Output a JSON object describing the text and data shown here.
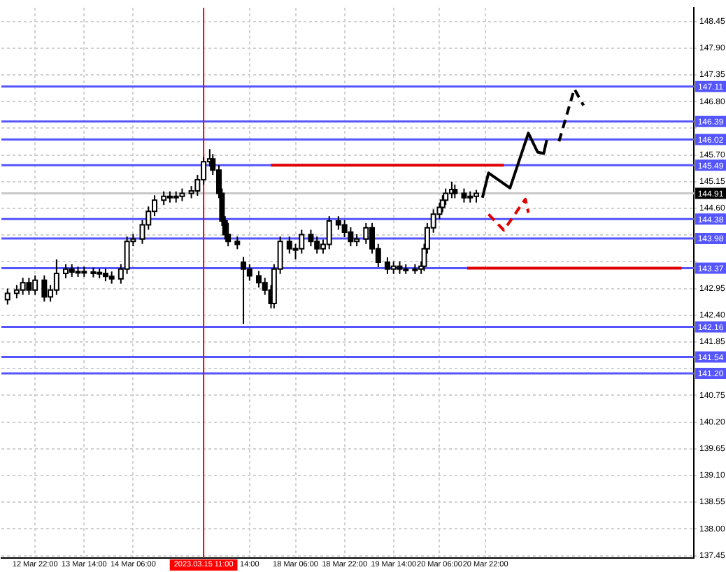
{
  "chart_data": {
    "type": "candlestick",
    "categories": [
      null,
      null,
      null,
      null,
      null,
      null,
      null,
      null,
      null,
      null,
      null,
      "12 Mar 22:00",
      null,
      null,
      null,
      null,
      null,
      null,
      null,
      null,
      null,
      null,
      null,
      null,
      null,
      null,
      null,
      "13 Mar 14:00",
      null,
      null,
      null,
      null,
      null,
      null,
      null,
      null,
      null,
      null,
      null,
      null,
      null,
      null,
      null,
      "14 Mar 06:00",
      null,
      null,
      null,
      null,
      null,
      null,
      null,
      null,
      null,
      null,
      null,
      null,
      null,
      null,
      null,
      null,
      null,
      null,
      null,
      null,
      null,
      null,
      "2023.03.15 11:00",
      null,
      null,
      null,
      null,
      null,
      null,
      null,
      null,
      null,
      null,
      null,
      null,
      null,
      null,
      "14:00",
      null,
      null,
      null,
      null,
      null,
      null,
      null,
      null,
      null,
      null,
      null,
      null,
      null,
      null,
      "18 Mar 06:00",
      null,
      null,
      null,
      null,
      null,
      null,
      null,
      null,
      null,
      null,
      null,
      null,
      null,
      null,
      null,
      "18 Mar 22:00",
      null,
      null,
      null,
      null,
      null,
      null,
      null,
      null,
      null,
      null,
      null,
      null,
      null,
      null,
      null,
      "19 Mar 14:00",
      null,
      null,
      null,
      null,
      null,
      null,
      null,
      null,
      null,
      null,
      null,
      null,
      null,
      null,
      "20 Mar 06:00",
      null,
      null,
      null,
      null,
      null,
      null,
      null,
      null,
      null,
      null,
      null,
      null,
      null,
      null,
      "20 Mar 22:00",
      null,
      null,
      null,
      null,
      null,
      null,
      null,
      null,
      null,
      null,
      null,
      null,
      null,
      null,
      null,
      null,
      null,
      null,
      null,
      null,
      null,
      null,
      null,
      null,
      null,
      null,
      null,
      null,
      null,
      null,
      null,
      null,
      null,
      null,
      null,
      null,
      null,
      null,
      null,
      null,
      null,
      null,
      null,
      null,
      null,
      null,
      null,
      null,
      null,
      null,
      null,
      null,
      null,
      null,
      null,
      null,
      null,
      null,
      null,
      null,
      null,
      null,
      null,
      null,
      null,
      null,
      null,
      null
    ],
    "ohlc": [
      null,
      null,
      [
        142.72,
        142.95,
        142.62,
        142.85
      ],
      null,
      null,
      [
        142.85,
        143.02,
        142.75,
        142.92
      ],
      null,
      [
        142.92,
        143.17,
        142.82,
        143.07
      ],
      null,
      [
        143.07,
        143.17,
        142.82,
        142.92
      ],
      null,
      [
        142.92,
        143.22,
        142.82,
        143.12
      ],
      null,
      null,
      [
        143.12,
        143.22,
        142.68,
        142.78
      ],
      null,
      [
        142.78,
        143.02,
        142.68,
        142.92
      ],
      null,
      [
        142.92,
        143.55,
        142.82,
        143.26
      ],
      null,
      null,
      [
        143.26,
        143.45,
        143.16,
        143.35
      ],
      null,
      [
        143.35,
        143.45,
        143.19,
        143.29
      ],
      null,
      [
        143.29,
        143.4,
        143.19,
        143.3
      ],
      null,
      [
        143.3,
        143.4,
        143.19,
        143.29
      ],
      null,
      null,
      [
        143.29,
        143.38,
        143.18,
        143.28
      ],
      null,
      [
        143.28,
        143.36,
        143.16,
        143.26
      ],
      null,
      [
        143.26,
        143.36,
        143.1,
        143.2
      ],
      null,
      [
        143.2,
        143.3,
        143.05,
        143.15
      ],
      null,
      null,
      [
        143.15,
        143.45,
        143.05,
        143.35
      ],
      null,
      [
        143.35,
        144.02,
        143.25,
        143.92
      ],
      null,
      [
        143.92,
        144.07,
        143.82,
        143.97
      ],
      null,
      null,
      [
        143.97,
        144.36,
        143.87,
        144.26
      ],
      null,
      [
        144.26,
        144.64,
        144.16,
        144.54
      ],
      null,
      [
        144.54,
        144.87,
        144.44,
        144.77
      ],
      null,
      null,
      [
        144.77,
        144.95,
        144.67,
        144.85
      ],
      null,
      [
        144.85,
        144.95,
        144.72,
        144.82
      ],
      null,
      [
        144.82,
        144.95,
        144.72,
        144.85
      ],
      null,
      [
        144.85,
        145.01,
        144.75,
        144.91
      ],
      null,
      null,
      [
        144.91,
        145.06,
        144.81,
        144.96
      ],
      null,
      [
        144.96,
        145.29,
        144.86,
        145.19
      ],
      null,
      [
        145.19,
        145.66,
        145.09,
        145.56
      ],
      null,
      [
        145.56,
        145.82,
        145.46,
        145.62
      ],
      [
        145.62,
        145.72,
        145.29,
        145.39
      ],
      null,
      [
        145.39,
        145.49,
        144.81,
        144.91
      ],
      [
        144.91,
        145.01,
        144.24,
        144.34
      ],
      [
        144.34,
        144.44,
        143.96,
        144.06
      ],
      [
        144.06,
        144.3,
        143.82,
        143.92
      ],
      null,
      null,
      [
        143.92,
        144.02,
        143.76,
        143.86
      ],
      null,
      [
        143.49,
        143.6,
        142.22,
        143.35
      ],
      null,
      [
        143.35,
        143.45,
        143.11,
        143.21
      ],
      null,
      null,
      [
        143.21,
        143.31,
        142.97,
        143.07
      ],
      null,
      [
        143.07,
        143.17,
        142.82,
        142.92
      ],
      null,
      [
        142.92,
        143.02,
        142.54,
        142.64
      ],
      [
        142.64,
        143.45,
        142.54,
        143.35
      ],
      null,
      [
        143.35,
        144.02,
        143.25,
        143.92
      ],
      null,
      null,
      [
        143.92,
        144.02,
        143.67,
        143.77
      ],
      null,
      [
        143.77,
        143.87,
        143.55,
        143.77
      ],
      null,
      [
        143.77,
        144.16,
        143.67,
        144.06
      ],
      null,
      null,
      [
        144.06,
        144.16,
        143.82,
        143.92
      ],
      null,
      [
        143.92,
        144.02,
        143.67,
        143.77
      ],
      null,
      [
        143.77,
        143.96,
        143.67,
        143.86
      ],
      null,
      [
        143.86,
        144.44,
        143.76,
        144.34
      ],
      null,
      null,
      [
        144.34,
        144.44,
        144.16,
        144.26
      ],
      null,
      [
        144.26,
        144.36,
        144.01,
        144.11
      ],
      null,
      [
        144.11,
        144.21,
        143.82,
        143.92
      ],
      null,
      [
        143.92,
        144.07,
        143.82,
        143.97
      ],
      null,
      null,
      [
        143.97,
        144.3,
        143.87,
        144.2
      ],
      null,
      [
        144.2,
        144.3,
        143.67,
        143.77
      ],
      null,
      [
        143.77,
        143.87,
        143.39,
        143.49
      ],
      null,
      null,
      [
        143.49,
        143.59,
        143.25,
        143.35
      ],
      null,
      [
        143.35,
        143.51,
        143.25,
        143.41
      ],
      null,
      [
        143.41,
        143.51,
        143.25,
        143.35
      ],
      null,
      [
        143.35,
        143.45,
        143.25,
        143.35
      ],
      null,
      null,
      [
        143.35,
        143.45,
        143.25,
        143.35
      ],
      null,
      [
        143.35,
        143.51,
        143.25,
        143.41
      ],
      [
        143.41,
        143.87,
        143.31,
        143.77
      ],
      [
        143.77,
        144.3,
        143.67,
        144.2
      ],
      null,
      [
        144.2,
        144.58,
        144.1,
        144.48
      ],
      null,
      [
        144.48,
        144.72,
        144.38,
        144.62
      ],
      [
        144.62,
        144.87,
        144.52,
        144.77
      ],
      [
        144.77,
        145.01,
        144.67,
        144.91
      ],
      null,
      [
        144.91,
        145.15,
        144.81,
        144.99
      ],
      [
        144.99,
        145.09,
        144.81,
        144.91
      ],
      null,
      null,
      [
        144.91,
        145.01,
        144.72,
        144.82
      ],
      null,
      [
        144.82,
        144.95,
        144.72,
        144.85
      ],
      null,
      [
        144.85,
        144.98,
        144.72,
        144.91
      ],
      null,
      null,
      null,
      null,
      null,
      null,
      null,
      null,
      null,
      null,
      null,
      null,
      null,
      null,
      null,
      null,
      null,
      null,
      null,
      null,
      null,
      null,
      null,
      null,
      null,
      null,
      null,
      null,
      null,
      null,
      null,
      null,
      null,
      null,
      null,
      null,
      null,
      null,
      null,
      null,
      null,
      null,
      null,
      null,
      null,
      null,
      null,
      null,
      null,
      null,
      null,
      null,
      null,
      null,
      null,
      null,
      null,
      null,
      null,
      null,
      null,
      null,
      null,
      null,
      null,
      null,
      null,
      null,
      null,
      null,
      null
    ],
    "series": [
      {
        "type": "line",
        "color": "#e00000",
        "line_style": "solid",
        "values": [
          null,
          null,
          null,
          null,
          null,
          null,
          null,
          null,
          null,
          null,
          null,
          null,
          null,
          null,
          null,
          null,
          null,
          null,
          null,
          null,
          null,
          null,
          null,
          null,
          null,
          null,
          null,
          null,
          null,
          null,
          null,
          null,
          null,
          null,
          null,
          null,
          null,
          null,
          null,
          null,
          null,
          null,
          null,
          null,
          null,
          null,
          null,
          null,
          null,
          null,
          null,
          null,
          null,
          null,
          null,
          null,
          null,
          null,
          null,
          null,
          null,
          null,
          null,
          null,
          null,
          null,
          null,
          null,
          null,
          null,
          null,
          null,
          null,
          null,
          null,
          null,
          null,
          null,
          null,
          null,
          null,
          null,
          null,
          null,
          null,
          null,
          null,
          null,
          145.49,
          null,
          null,
          null,
          null,
          null,
          null,
          null,
          null,
          null,
          null,
          null,
          null,
          null,
          null,
          null,
          null,
          null,
          null,
          null,
          null,
          null,
          null,
          null,
          null,
          null,
          null,
          null,
          null,
          null,
          null,
          null,
          null,
          null,
          null,
          null,
          null,
          null,
          null,
          null,
          null,
          null,
          null,
          null,
          null,
          null,
          null,
          null,
          null,
          null,
          null,
          null,
          null,
          null,
          null,
          null,
          null,
          null,
          null,
          null,
          null,
          null,
          null,
          null,
          null,
          null,
          null,
          null,
          null,
          null,
          null,
          null,
          null,
          null,
          null,
          null,
          145.49,
          null,
          null,
          null,
          null,
          null,
          null,
          null,
          null,
          null,
          null,
          null,
          null,
          null,
          null,
          null,
          null,
          null,
          null,
          null,
          null,
          null,
          null,
          null,
          null,
          null,
          null,
          null,
          null,
          null,
          null,
          null,
          null,
          null,
          null,
          null,
          null,
          null,
          null,
          null,
          null,
          null,
          null,
          null,
          null,
          null,
          null,
          null,
          null,
          null,
          null,
          null,
          null,
          null,
          null,
          null,
          null,
          null,
          null,
          null,
          null,
          null,
          null
        ]
      },
      {
        "type": "line",
        "color": "#e00000",
        "line_style": "solid",
        "values": [
          null,
          null,
          null,
          null,
          null,
          null,
          null,
          null,
          null,
          null,
          null,
          null,
          null,
          null,
          null,
          null,
          null,
          null,
          null,
          null,
          null,
          null,
          null,
          null,
          null,
          null,
          null,
          null,
          null,
          null,
          null,
          null,
          null,
          null,
          null,
          null,
          null,
          null,
          null,
          null,
          null,
          null,
          null,
          null,
          null,
          null,
          null,
          null,
          null,
          null,
          null,
          null,
          null,
          null,
          null,
          null,
          null,
          null,
          null,
          null,
          null,
          null,
          null,
          null,
          null,
          null,
          null,
          null,
          null,
          null,
          null,
          null,
          null,
          null,
          null,
          null,
          null,
          null,
          null,
          null,
          null,
          null,
          null,
          null,
          null,
          null,
          null,
          null,
          null,
          null,
          null,
          null,
          null,
          null,
          null,
          null,
          null,
          null,
          null,
          null,
          null,
          null,
          null,
          null,
          null,
          null,
          null,
          null,
          null,
          null,
          null,
          null,
          null,
          null,
          null,
          null,
          null,
          null,
          null,
          null,
          null,
          null,
          null,
          null,
          null,
          null,
          null,
          null,
          null,
          null,
          null,
          null,
          null,
          null,
          null,
          null,
          null,
          null,
          null,
          null,
          null,
          null,
          null,
          null,
          null,
          null,
          null,
          null,
          null,
          null,
          null,
          null,
          143.37,
          null,
          null,
          null,
          null,
          null,
          null,
          null,
          null,
          null,
          null,
          null,
          null,
          null,
          null,
          null,
          null,
          null,
          null,
          null,
          null,
          null,
          null,
          null,
          null,
          null,
          null,
          null,
          null,
          null,
          null,
          null,
          null,
          null,
          null,
          null,
          null,
          null,
          null,
          null,
          null,
          null,
          null,
          null,
          null,
          null,
          null,
          null,
          null,
          null,
          null,
          null,
          null,
          null,
          null,
          null,
          null,
          null,
          null,
          null,
          null,
          null,
          null,
          null,
          null,
          null,
          null,
          null,
          null,
          null,
          143.37,
          null,
          null,
          null,
          null
        ]
      },
      {
        "type": "line",
        "color": "#000000",
        "line_style": "solid",
        "values": [
          null,
          null,
          null,
          null,
          null,
          null,
          null,
          null,
          null,
          null,
          null,
          null,
          null,
          null,
          null,
          null,
          null,
          null,
          null,
          null,
          null,
          null,
          null,
          null,
          null,
          null,
          null,
          null,
          null,
          null,
          null,
          null,
          null,
          null,
          null,
          null,
          null,
          null,
          null,
          null,
          null,
          null,
          null,
          null,
          null,
          null,
          null,
          null,
          null,
          null,
          null,
          null,
          null,
          null,
          null,
          null,
          null,
          null,
          null,
          null,
          null,
          null,
          null,
          null,
          null,
          null,
          null,
          null,
          null,
          null,
          null,
          null,
          null,
          null,
          null,
          null,
          null,
          null,
          null,
          null,
          null,
          null,
          null,
          null,
          null,
          null,
          null,
          null,
          null,
          null,
          null,
          null,
          null,
          null,
          null,
          null,
          null,
          null,
          null,
          null,
          null,
          null,
          null,
          null,
          null,
          null,
          null,
          null,
          null,
          null,
          null,
          null,
          null,
          null,
          null,
          null,
          null,
          null,
          null,
          null,
          null,
          null,
          null,
          null,
          null,
          null,
          null,
          null,
          null,
          null,
          null,
          null,
          null,
          null,
          null,
          null,
          null,
          null,
          null,
          null,
          null,
          null,
          null,
          null,
          null,
          null,
          null,
          null,
          null,
          null,
          null,
          null,
          null,
          null,
          null,
          null,
          null,
          144.82,
          null,
          145.33,
          null,
          null,
          null,
          null,
          null,
          null,
          145.02,
          null,
          null,
          null,
          null,
          null,
          146.15,
          null,
          null,
          145.76,
          null,
          145.73,
          146.01,
          null,
          null,
          null,
          null,
          null,
          null,
          null,
          null,
          null,
          null,
          null,
          null,
          null,
          null,
          null,
          null,
          null,
          null,
          null,
          null,
          null,
          null,
          null,
          null,
          null,
          null,
          null,
          null,
          null,
          null,
          null,
          null,
          null,
          null,
          null,
          null,
          null,
          null,
          null,
          null,
          null,
          null,
          null,
          null,
          null,
          null,
          null,
          null
        ]
      },
      {
        "type": "line",
        "color": "#000000",
        "line_style": "dashed",
        "values": [
          null,
          null,
          null,
          null,
          null,
          null,
          null,
          null,
          null,
          null,
          null,
          null,
          null,
          null,
          null,
          null,
          null,
          null,
          null,
          null,
          null,
          null,
          null,
          null,
          null,
          null,
          null,
          null,
          null,
          null,
          null,
          null,
          null,
          null,
          null,
          null,
          null,
          null,
          null,
          null,
          null,
          null,
          null,
          null,
          null,
          null,
          null,
          null,
          null,
          null,
          null,
          null,
          null,
          null,
          null,
          null,
          null,
          null,
          null,
          null,
          null,
          null,
          null,
          null,
          null,
          null,
          null,
          null,
          null,
          null,
          null,
          null,
          null,
          null,
          null,
          null,
          null,
          null,
          null,
          null,
          null,
          null,
          null,
          null,
          null,
          null,
          null,
          null,
          null,
          null,
          null,
          null,
          null,
          null,
          null,
          null,
          null,
          null,
          null,
          null,
          null,
          null,
          null,
          null,
          null,
          null,
          null,
          null,
          null,
          null,
          null,
          null,
          null,
          null,
          null,
          null,
          null,
          null,
          null,
          null,
          null,
          null,
          null,
          null,
          null,
          null,
          null,
          null,
          null,
          null,
          null,
          null,
          null,
          null,
          null,
          null,
          null,
          null,
          null,
          null,
          null,
          null,
          null,
          null,
          null,
          null,
          null,
          null,
          null,
          null,
          null,
          null,
          null,
          null,
          null,
          null,
          null,
          null,
          null,
          null,
          null,
          null,
          null,
          null,
          null,
          null,
          null,
          null,
          null,
          null,
          null,
          null,
          null,
          null,
          null,
          null,
          null,
          null,
          null,
          null,
          null,
          null,
          145.98,
          null,
          null,
          null,
          null,
          147.06,
          null,
          null,
          146.72,
          null,
          null,
          null,
          null,
          null,
          null,
          null,
          null,
          null,
          null,
          null,
          null,
          null,
          null,
          null,
          null,
          null,
          null,
          null,
          null,
          null,
          null,
          null,
          null,
          null,
          null,
          null,
          null,
          null,
          null,
          null,
          null,
          null,
          null,
          null,
          null
        ]
      },
      {
        "type": "line",
        "color": "#e00000",
        "line_style": "dashed",
        "values": [
          null,
          null,
          null,
          null,
          null,
          null,
          null,
          null,
          null,
          null,
          null,
          null,
          null,
          null,
          null,
          null,
          null,
          null,
          null,
          null,
          null,
          null,
          null,
          null,
          null,
          null,
          null,
          null,
          null,
          null,
          null,
          null,
          null,
          null,
          null,
          null,
          null,
          null,
          null,
          null,
          null,
          null,
          null,
          null,
          null,
          null,
          null,
          null,
          null,
          null,
          null,
          null,
          null,
          null,
          null,
          null,
          null,
          null,
          null,
          null,
          null,
          null,
          null,
          null,
          null,
          null,
          null,
          null,
          null,
          null,
          null,
          null,
          null,
          null,
          null,
          null,
          null,
          null,
          null,
          null,
          null,
          null,
          null,
          null,
          null,
          null,
          null,
          null,
          null,
          null,
          null,
          null,
          null,
          null,
          null,
          null,
          null,
          null,
          null,
          null,
          null,
          null,
          null,
          null,
          null,
          null,
          null,
          null,
          null,
          null,
          null,
          null,
          null,
          null,
          null,
          null,
          null,
          null,
          null,
          null,
          null,
          null,
          null,
          null,
          null,
          null,
          null,
          null,
          null,
          null,
          null,
          null,
          null,
          null,
          null,
          null,
          null,
          null,
          null,
          null,
          null,
          null,
          null,
          null,
          null,
          null,
          null,
          null,
          null,
          null,
          null,
          null,
          null,
          null,
          null,
          null,
          null,
          null,
          null,
          144.48,
          null,
          null,
          null,
          null,
          144.15,
          null,
          null,
          null,
          null,
          null,
          null,
          144.79,
          144.51,
          null,
          null,
          null,
          null,
          null,
          null,
          null,
          null,
          null,
          null,
          null,
          null,
          null,
          null,
          null,
          null,
          null,
          null,
          null,
          null,
          null,
          null,
          null,
          null,
          null,
          null,
          null,
          null,
          null,
          null,
          null,
          null,
          null,
          null,
          null,
          null,
          null,
          null,
          null,
          null,
          null,
          null,
          null,
          null,
          null,
          null,
          null,
          null,
          null,
          null,
          null,
          null,
          null,
          null
        ]
      }
    ],
    "ylim": [
      137.4,
      148.73
    ],
    "yticks": [
      137.45,
      {
        "value": 138.0,
        "label": "138.00"
      },
      138.55,
      {
        "value": 139.1,
        "label": "139.10"
      },
      139.65,
      {
        "value": 140.2,
        "label": "140.20"
      },
      140.75,
      {
        "value": 141.3,
        "label": null
      },
      141.85,
      {
        "value": 142.4,
        "label": "142.40"
      },
      142.95,
      {
        "value": 143.5,
        "label": null
      },
      {
        "value": 144.05,
        "label": null
      },
      {
        "value": 144.6,
        "label": "144.60"
      },
      145.15,
      {
        "value": 145.7,
        "label": "145.70"
      },
      {
        "value": 146.25,
        "label": null
      },
      {
        "value": 146.8,
        "label": "146.80"
      },
      147.35,
      {
        "value": 147.9,
        "label": "147.90"
      },
      148.45
    ],
    "ref_lines": [
      {
        "axis": "y",
        "value": 147.11,
        "label": "147.11",
        "color": "#5555ff"
      },
      {
        "axis": "y",
        "value": 146.39,
        "label": "146.39",
        "color": "#5555ff"
      },
      {
        "axis": "y",
        "value": 146.02,
        "label": "146.02",
        "color": "#5555ff"
      },
      {
        "axis": "y",
        "value": 145.49,
        "label": "145.49",
        "color": "#5555ff"
      },
      {
        "axis": "y",
        "value": 144.38,
        "label": "144.38",
        "color": "#5555ff"
      },
      {
        "axis": "y",
        "value": 143.98,
        "label": "143.98",
        "color": "#5555ff"
      },
      {
        "axis": "y",
        "value": 143.37,
        "label": "143.37",
        "color": "#5555ff"
      },
      {
        "axis": "y",
        "value": 142.16,
        "label": "142.16",
        "color": "#5555ff"
      },
      {
        "axis": "y",
        "value": 141.54,
        "label": "141.54",
        "color": "#5555ff"
      },
      {
        "axis": "y",
        "value": 141.2,
        "label": "141.20",
        "color": "#5555ff"
      },
      {
        "axis": "y",
        "value": 144.91,
        "label": "144.91",
        "color": "#c8c8c8"
      },
      {
        "axis": "x",
        "value": "2023.03.15 11:00",
        "color": "#ff0000"
      }
    ],
    "grid": true,
    "legend": false,
    "marker": "none"
  }
}
